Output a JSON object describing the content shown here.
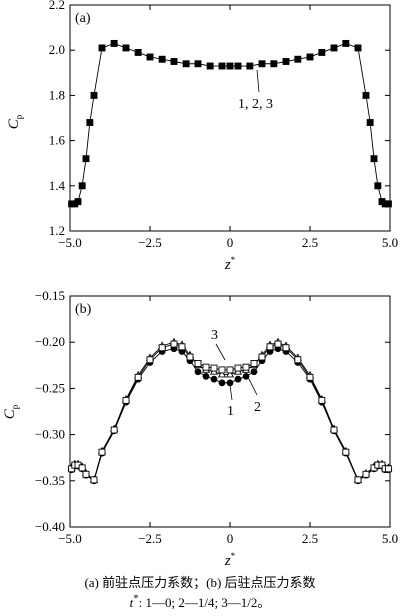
{
  "chart_data": [
    {
      "type": "line",
      "panel_label": "(a)",
      "xlabel": "z*",
      "ylabel": "Cp",
      "xlim": [
        -5.0,
        5.0
      ],
      "ylim": [
        1.2,
        2.2
      ],
      "xticks": [
        "−5.0",
        "−2.5",
        "0",
        "2.5",
        "5.0"
      ],
      "yticks": [
        "1.2",
        "1.4",
        "1.6",
        "1.8",
        "2.0",
        "2.2"
      ],
      "annotation": "1, 2, 3",
      "series": [
        {
          "marker": "square",
          "x": [
            -4.95,
            -4.85,
            -4.75,
            -4.62,
            -4.5,
            -4.38,
            -4.25,
            -4.0,
            -3.62,
            -3.25,
            -2.87,
            -2.5,
            -2.12,
            -1.75,
            -1.37,
            -1.0,
            -0.62,
            -0.25,
            0.0,
            0.25,
            0.62,
            1.0,
            1.37,
            1.75,
            2.12,
            2.5,
            2.87,
            3.25,
            3.62,
            4.0,
            4.25,
            4.38,
            4.5,
            4.62,
            4.75,
            4.85,
            4.95
          ],
          "y": [
            1.32,
            1.32,
            1.33,
            1.4,
            1.52,
            1.68,
            1.8,
            2.01,
            2.03,
            2.01,
            1.99,
            1.97,
            1.96,
            1.95,
            1.94,
            1.94,
            1.93,
            1.93,
            1.93,
            1.93,
            1.93,
            1.94,
            1.94,
            1.95,
            1.96,
            1.97,
            1.99,
            2.01,
            2.03,
            2.01,
            1.8,
            1.68,
            1.52,
            1.4,
            1.33,
            1.32,
            1.32
          ]
        }
      ]
    },
    {
      "type": "line",
      "panel_label": "(b)",
      "xlabel": "z*",
      "ylabel": "Cp",
      "xlim": [
        -5.0,
        5.0
      ],
      "ylim": [
        -0.4,
        -0.15
      ],
      "xticks": [
        "−5.0",
        "−2.5",
        "0",
        "2.5",
        "5.0"
      ],
      "yticks": [
        "−0.40",
        "−0.35",
        "−0.30",
        "−0.25",
        "−0.20",
        "−0.15"
      ],
      "labels": [
        "1",
        "2",
        "3"
      ],
      "x": [
        -4.95,
        -4.85,
        -4.75,
        -4.62,
        -4.5,
        -4.25,
        -4.0,
        -3.62,
        -3.25,
        -2.87,
        -2.5,
        -2.12,
        -1.75,
        -1.5,
        -1.25,
        -1.0,
        -0.75,
        -0.5,
        -0.25,
        0.0,
        0.25,
        0.5,
        0.75,
        1.0,
        1.25,
        1.5,
        1.75,
        2.12,
        2.5,
        2.87,
        3.25,
        3.62,
        4.0,
        4.25,
        4.5,
        4.62,
        4.75,
        4.85,
        4.95
      ],
      "series": [
        {
          "marker": "circle",
          "y": [
            -0.338,
            -0.334,
            -0.334,
            -0.337,
            -0.344,
            -0.35,
            -0.32,
            -0.296,
            -0.265,
            -0.24,
            -0.222,
            -0.21,
            -0.207,
            -0.21,
            -0.22,
            -0.232,
            -0.237,
            -0.24,
            -0.244,
            -0.244,
            -0.24,
            -0.237,
            -0.232,
            -0.22,
            -0.21,
            -0.207,
            -0.21,
            -0.222,
            -0.24,
            -0.265,
            -0.296,
            -0.32,
            -0.35,
            -0.344,
            -0.337,
            -0.334,
            -0.334,
            -0.338,
            -0.338
          ]
        },
        {
          "marker": "triangle",
          "y": [
            -0.336,
            -0.332,
            -0.332,
            -0.335,
            -0.342,
            -0.349,
            -0.318,
            -0.294,
            -0.262,
            -0.236,
            -0.217,
            -0.204,
            -0.2,
            -0.203,
            -0.214,
            -0.225,
            -0.23,
            -0.232,
            -0.235,
            -0.235,
            -0.232,
            -0.23,
            -0.225,
            -0.214,
            -0.203,
            -0.2,
            -0.204,
            -0.217,
            -0.236,
            -0.262,
            -0.294,
            -0.318,
            -0.349,
            -0.342,
            -0.335,
            -0.332,
            -0.332,
            -0.336,
            -0.336
          ]
        },
        {
          "marker": "square",
          "y": [
            -0.337,
            -0.333,
            -0.333,
            -0.336,
            -0.343,
            -0.349,
            -0.319,
            -0.295,
            -0.263,
            -0.238,
            -0.219,
            -0.206,
            -0.202,
            -0.205,
            -0.216,
            -0.223,
            -0.227,
            -0.228,
            -0.23,
            -0.23,
            -0.228,
            -0.227,
            -0.223,
            -0.216,
            -0.205,
            -0.202,
            -0.206,
            -0.219,
            -0.238,
            -0.263,
            -0.295,
            -0.319,
            -0.349,
            -0.343,
            -0.336,
            -0.333,
            -0.333,
            -0.337,
            -0.337
          ]
        }
      ]
    }
  ],
  "caption": {
    "line1": "(a) 前驻点压力系数；(b) 后驻点压力系数",
    "line2_prefix": "t",
    "line2_rest": ": 1—0; 2—1/4; 3—1/2。"
  }
}
